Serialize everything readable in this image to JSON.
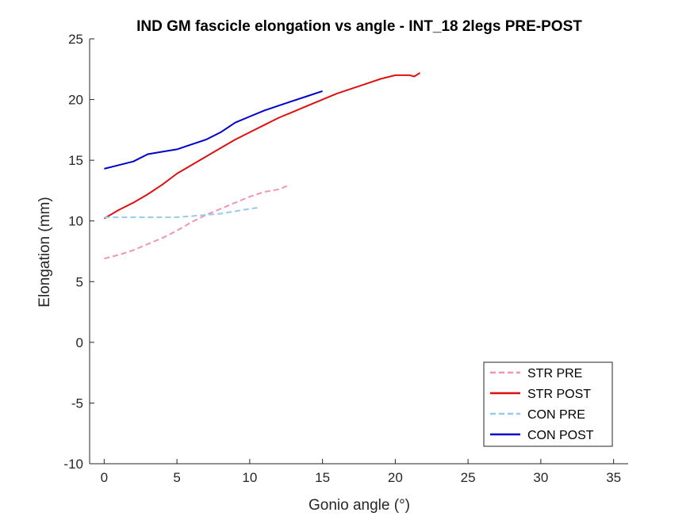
{
  "chart_data": {
    "type": "line",
    "title": "IND GM fascicle elongation vs angle - INT_18 2legs PRE-POST",
    "xlabel": "Gonio angle (°)",
    "ylabel": "Elongation (mm)",
    "xlim": [
      -1,
      36
    ],
    "ylim": [
      -10,
      25
    ],
    "xticks": [
      0,
      5,
      10,
      15,
      20,
      25,
      30,
      35
    ],
    "yticks": [
      -10,
      -5,
      0,
      5,
      10,
      15,
      20,
      25
    ],
    "grid": false,
    "box": false,
    "legend_location": "bottom-right",
    "series": [
      {
        "name": "STR PRE",
        "color": "#f294b3",
        "dash": "dashed",
        "x": [
          0,
          1,
          2,
          3,
          4,
          5,
          6,
          7,
          8,
          9,
          10,
          11,
          12,
          12.6
        ],
        "y": [
          6.9,
          7.2,
          7.6,
          8.1,
          8.6,
          9.2,
          9.9,
          10.5,
          11.0,
          11.5,
          12.0,
          12.4,
          12.6,
          12.9
        ]
      },
      {
        "name": "STR POST",
        "color": "#dd1111",
        "dash": "solid",
        "x": [
          0,
          1,
          2,
          3,
          4,
          5,
          6,
          7,
          8,
          9,
          10,
          11,
          12,
          13,
          14,
          15,
          16,
          17,
          18,
          19,
          20,
          21,
          21.3,
          21.7
        ],
        "y": [
          10.2,
          10.9,
          11.5,
          12.2,
          13.0,
          13.9,
          14.6,
          15.3,
          16.0,
          16.7,
          17.3,
          17.9,
          18.5,
          19.0,
          19.5,
          20.0,
          20.5,
          20.9,
          21.3,
          21.7,
          22.0,
          22.0,
          21.9,
          22.2
        ]
      },
      {
        "name": "CON PRE",
        "color": "#99c9ee",
        "dash": "dashed",
        "x": [
          0,
          1,
          2,
          3,
          4,
          5,
          6,
          7,
          8,
          9,
          10,
          10.6
        ],
        "y": [
          10.3,
          10.3,
          10.3,
          10.3,
          10.3,
          10.3,
          10.4,
          10.5,
          10.6,
          10.8,
          11.0,
          11.1
        ]
      },
      {
        "name": "CON POST",
        "color": "#0000cc",
        "dash": "solid",
        "x": [
          0,
          1,
          2,
          3,
          4,
          5,
          6,
          7,
          8,
          9,
          10,
          11,
          12,
          13,
          14,
          15
        ],
        "y": [
          14.3,
          14.6,
          14.9,
          15.5,
          15.7,
          15.9,
          16.3,
          16.7,
          17.3,
          18.1,
          18.6,
          19.1,
          19.5,
          19.9,
          20.3,
          20.7
        ]
      }
    ]
  }
}
